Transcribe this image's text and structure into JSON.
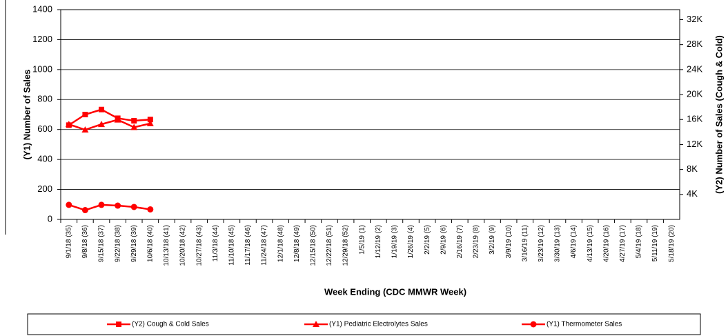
{
  "chart_data": {
    "type": "line",
    "x_label": "Week Ending (CDC MMWR Week)",
    "y_label": "(Y1) Number of Sales",
    "y2_label": "(Y2) Number of Sales (Cough & Cold)",
    "categories": [
      "9/1/18 (35)",
      "9/8/18 (36)",
      "9/15/18 (37)",
      "9/22/18 (38)",
      "9/29/18 (39)",
      "10/6/18 (40)",
      "10/13/18 (41)",
      "10/20/18 (42)",
      "10/27/18 (43)",
      "11/3/18 (44)",
      "11/10/18 (45)",
      "11/17/18 (46)",
      "11/24/18 (47)",
      "12/1/18 (48)",
      "12/8/18 (49)",
      "12/15/18 (50)",
      "12/22/18 (51)",
      "12/29/18 (52)",
      "1/5/19 (1)",
      "1/12/19 (2)",
      "1/19/19 (3)",
      "1/26/19 (4)",
      "2/2/19 (5)",
      "2/9/19 (6)",
      "2/16/19 (7)",
      "2/23/19 (8)",
      "3/2/19 (9)",
      "3/9/19 (10)",
      "3/16/19 (11)",
      "3/23/19 (12)",
      "3/30/19 (13)",
      "4/6/19 (14)",
      "4/13/19 (15)",
      "4/20/19 (16)",
      "4/27/19 (17)",
      "5/4/19 (18)",
      "5/11/19 (19)",
      "5/18/19 (20)"
    ],
    "series": [
      {
        "name": "(Y2) Cough & Cold Sales",
        "color": "#ff0000",
        "marker": "square",
        "axis": "y2",
        "values": [
          15100,
          16800,
          17600,
          16200,
          15800,
          16000,
          null,
          null,
          null,
          null,
          null,
          null,
          null,
          null,
          null,
          null,
          null,
          null,
          null,
          null,
          null,
          null,
          null,
          null,
          null,
          null,
          null,
          null,
          null,
          null,
          null,
          null,
          null,
          null,
          null,
          null,
          null,
          null
        ]
      },
      {
        "name": "(Y1) Pediatric Electrolytes Sales",
        "color": "#ff0000",
        "marker": "triangle",
        "values": [
          635,
          598,
          635,
          665,
          615,
          640,
          null,
          null,
          null,
          null,
          null,
          null,
          null,
          null,
          null,
          null,
          null,
          null,
          null,
          null,
          null,
          null,
          null,
          null,
          null,
          null,
          null,
          null,
          null,
          null,
          null,
          null,
          null,
          null,
          null,
          null,
          null,
          null
        ]
      },
      {
        "name": "(Y1) Thermometer Sales",
        "color": "#ff0000",
        "marker": "circle",
        "values": [
          97,
          62,
          97,
          92,
          83,
          67,
          null,
          null,
          null,
          null,
          null,
          null,
          null,
          null,
          null,
          null,
          null,
          null,
          null,
          null,
          null,
          null,
          null,
          null,
          null,
          null,
          null,
          null,
          null,
          null,
          null,
          null,
          null,
          null,
          null,
          null,
          null,
          null
        ]
      }
    ],
    "ylim": [
      0,
      1400
    ],
    "yticks": [
      0,
      200,
      400,
      600,
      800,
      1000,
      1200,
      1400
    ],
    "y2lim": [
      0,
      33600
    ],
    "y2ticks": [
      {
        "value": 4000,
        "label": "4K"
      },
      {
        "value": 8000,
        "label": "8K"
      },
      {
        "value": 12000,
        "label": "12K"
      },
      {
        "value": 16000,
        "label": "16K"
      },
      {
        "value": 20000,
        "label": "20K"
      },
      {
        "value": 24000,
        "label": "24K"
      },
      {
        "value": 28000,
        "label": "28K"
      },
      {
        "value": 32000,
        "label": "32K"
      }
    ],
    "grid": true
  }
}
